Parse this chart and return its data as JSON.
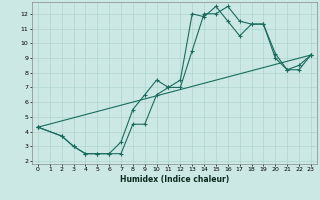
{
  "xlabel": "Humidex (Indice chaleur)",
  "bg_color": "#cce8e4",
  "grid_color": "#aed4ce",
  "line_color": "#1a6b5e",
  "xlim": [
    -0.5,
    23.5
  ],
  "ylim": [
    1.8,
    12.8
  ],
  "xticks": [
    0,
    1,
    2,
    3,
    4,
    5,
    6,
    7,
    8,
    9,
    10,
    11,
    12,
    13,
    14,
    15,
    16,
    17,
    18,
    19,
    20,
    21,
    22,
    23
  ],
  "yticks": [
    2,
    3,
    4,
    5,
    6,
    7,
    8,
    9,
    10,
    11,
    12
  ],
  "line1_x": [
    0,
    2,
    3,
    4,
    5,
    6,
    7,
    8,
    9,
    10,
    11,
    12,
    13,
    14,
    15,
    16,
    17,
    18,
    19,
    20,
    21,
    22,
    23
  ],
  "line1_y": [
    4.3,
    3.7,
    3.0,
    2.5,
    2.5,
    2.5,
    2.5,
    4.5,
    4.5,
    6.5,
    7.0,
    7.0,
    9.5,
    12.0,
    12.0,
    12.5,
    11.5,
    11.3,
    11.3,
    9.0,
    8.2,
    8.2,
    9.2
  ],
  "line2_x": [
    0,
    2,
    3,
    4,
    5,
    6,
    7,
    8,
    9,
    10,
    11,
    12,
    13,
    14,
    15,
    16,
    17,
    18,
    19,
    20,
    21,
    22,
    23
  ],
  "line2_y": [
    4.3,
    3.7,
    3.0,
    2.5,
    2.5,
    2.5,
    3.3,
    5.5,
    6.5,
    7.5,
    7.0,
    7.5,
    12.0,
    11.8,
    12.5,
    11.5,
    10.5,
    11.3,
    11.3,
    9.3,
    8.2,
    8.5,
    9.2
  ],
  "line3_x": [
    0,
    23
  ],
  "line3_y": [
    4.3,
    9.2
  ]
}
